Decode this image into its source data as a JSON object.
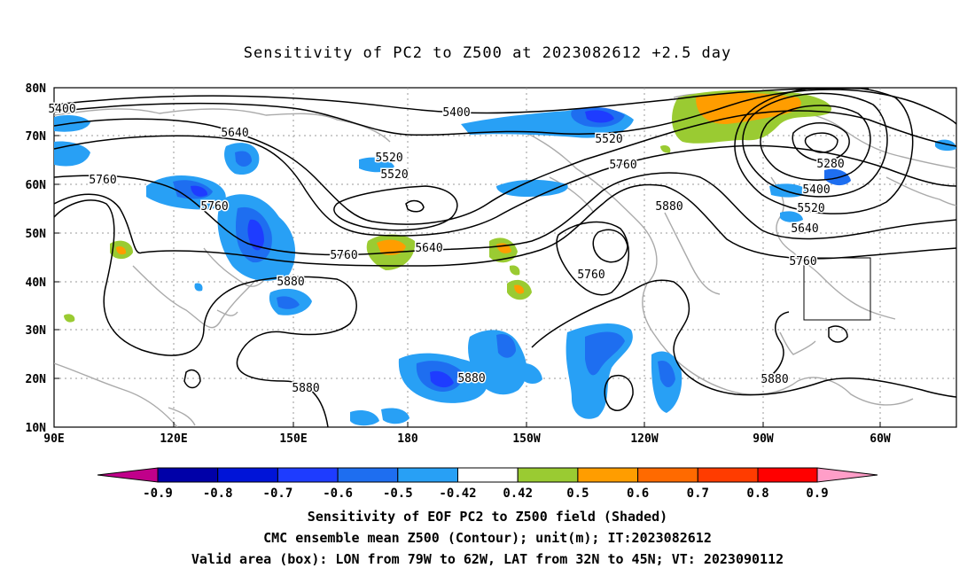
{
  "title": "Sensitivity of PC2 to Z500 at 2023082612 +2.5 day",
  "axes": {
    "lon_ticks": [
      "90E",
      "120E",
      "150E",
      "180",
      "150W",
      "120W",
      "90W",
      "60W"
    ],
    "lat_ticks": [
      "80N",
      "70N",
      "60N",
      "50N",
      "40N",
      "30N",
      "20N",
      "10N"
    ]
  },
  "colorbar": {
    "labels": [
      "-0.9",
      "-0.8",
      "-0.7",
      "-0.6",
      "-0.5",
      "-0.42",
      "0.42",
      "0.5",
      "0.6",
      "0.7",
      "0.8",
      "0.9"
    ],
    "colors": [
      "#c0008a",
      "#0000a8",
      "#0014d8",
      "#1e3cff",
      "#1e6ef0",
      "#28a0f5",
      "#00c8f5",
      "#ffffff",
      "#9acb32",
      "#ff9d00",
      "#ff6a00",
      "#ff3c00",
      "#ff0000",
      "#ff9ec8"
    ]
  },
  "contour_labels": [
    "5400",
    "5640",
    "5520",
    "5520",
    "5760",
    "5760",
    "5640",
    "5760",
    "5880",
    "5880",
    "5880",
    "5880",
    "5760",
    "5520",
    "5280",
    "5400",
    "5520",
    "5640",
    "5760",
    "5880",
    "5400"
  ],
  "captions": [
    "Sensitivity of EOF PC2 to Z500 field (Shaded)",
    "CMC ensemble mean Z500 (Contour); unit(m); IT:2023082612",
    "Valid area (box): LON from 79W to 62W, LAT from 32N to 45N; VT: 2023090112"
  ]
}
